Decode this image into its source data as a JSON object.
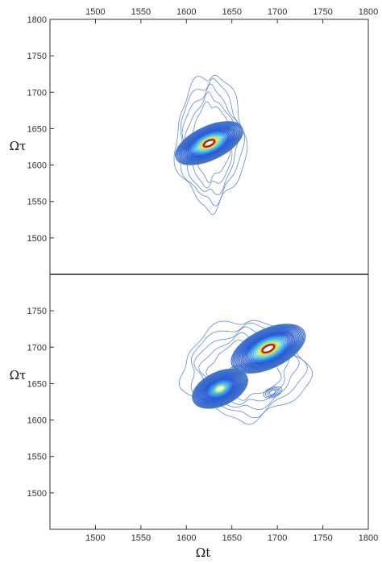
{
  "chart_data": [
    {
      "type": "contour",
      "panel": "top",
      "xlabel": "",
      "ylabel": "Ωτ",
      "xlim": [
        1450,
        1800
      ],
      "ylim": [
        1450,
        1800
      ],
      "x_ticks": [
        "1500",
        "1550",
        "1600",
        "1650",
        "1700",
        "1750",
        "1800"
      ],
      "y_ticks": [
        "1500",
        "1550",
        "1600",
        "1650",
        "1700",
        "1750",
        "1800"
      ],
      "x_tick_position": "top",
      "peaks": [
        {
          "x": 1625,
          "y": 1630,
          "rx": 42,
          "ry": 24,
          "rotation_deg": -25,
          "intensity": 1.0
        }
      ],
      "outer_contour_extent": {
        "x": [
          1588,
          1665
        ],
        "y": [
          1540,
          1725
        ]
      }
    },
    {
      "type": "contour",
      "panel": "bottom",
      "xlabel": "Ωt",
      "ylabel": "Ωτ",
      "xlim": [
        1450,
        1800
      ],
      "ylim": [
        1450,
        1800
      ],
      "x_ticks": [
        "1500",
        "1550",
        "1600",
        "1650",
        "1700",
        "1750",
        "1800"
      ],
      "y_ticks": [
        "1500",
        "1550",
        "1600",
        "1650",
        "1700",
        "1750"
      ],
      "x_tick_position": "bottom",
      "peaks": [
        {
          "x": 1690,
          "y": 1698,
          "rx": 46,
          "ry": 28,
          "rotation_deg": -25,
          "intensity": 1.0
        },
        {
          "x": 1637,
          "y": 1643,
          "rx": 34,
          "ry": 24,
          "rotation_deg": -25,
          "intensity": 0.8
        }
      ],
      "side_features": [
        {
          "x": 1655,
          "y": 1668
        },
        {
          "x": 1695,
          "y": 1638
        }
      ],
      "outer_contour_extent": {
        "x": [
          1595,
          1735
        ],
        "y": [
          1600,
          1738
        ]
      }
    }
  ]
}
